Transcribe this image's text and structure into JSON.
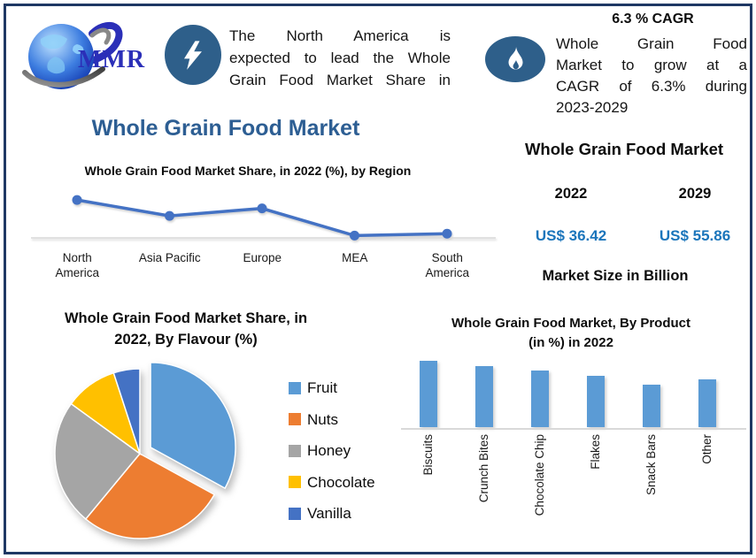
{
  "brand": {
    "name": "MMR",
    "logo_icon": "globe-icon"
  },
  "headline": {
    "icon": "lightning-icon",
    "lines": [
      "The North America is",
      "expected to lead the Whole",
      "Grain Food Market Share in"
    ]
  },
  "cagr": {
    "heading": "6.3 % CAGR",
    "icon": "flame-icon",
    "lines": [
      "Whole Grain Food",
      "Market to grow at a",
      "CAGR of 6.3% during",
      "2023-2029"
    ]
  },
  "main_title": "Whole Grain Food Market",
  "market_size": {
    "title": "Whole Grain Food Market",
    "columns": [
      {
        "year": "2022",
        "value": "US$ 36.42"
      },
      {
        "year": "2029",
        "value": "US$ 55.86"
      }
    ],
    "caption": "Market Size in Billion"
  },
  "colors": {
    "border_navy": "#1F3864",
    "icon_ellipse_blue": "#2E5F8A",
    "title_blue": "#2D5E93",
    "value_blue": "#1B75BB",
    "axis_gray": "#D9D9D9"
  },
  "chart_data": [
    {
      "id": "region_line",
      "type": "line",
      "title": "Whole Grain Food Market Share, in 2022 (%), by Region",
      "categories": [
        "North America",
        "Asia Pacific",
        "Europe",
        "MEA",
        "South America"
      ],
      "values": [
        40,
        23,
        31,
        2,
        4
      ],
      "line_color": "#4472C4",
      "ylim": [
        0,
        45
      ],
      "grid": false,
      "legend": "none",
      "axis_line": true
    },
    {
      "id": "flavour_pie",
      "type": "pie",
      "title": "Whole Grain Food Market Share, in 2022, By Flavour (%)",
      "title_lines": [
        "Whole Grain Food Market Share, in",
        "2022, By Flavour (%)"
      ],
      "labels": [
        "Fruit",
        "Nuts",
        "Honey",
        "Chocolate",
        "Vanilla"
      ],
      "values": [
        33,
        28,
        24,
        10,
        5
      ],
      "colors": [
        "#5B9BD5",
        "#ED7D31",
        "#A5A5A5",
        "#FFC000",
        "#4472C4"
      ],
      "exploded_slice": "Fruit",
      "legend_position": "right"
    },
    {
      "id": "product_bar",
      "type": "bar",
      "title": "Whole Grain Food Market, By Product (in %) in 2022",
      "title_lines": [
        "Whole Grain Food Market, By Product",
        "(in %) in 2022"
      ],
      "categories": [
        "Biscuits",
        "Crunch Bites",
        "Chocolate Chip",
        "Flakes",
        "Snack Bars",
        "Other"
      ],
      "values": [
        25,
        23,
        21.5,
        19.5,
        16,
        18
      ],
      "bar_color": "#5B9BD5",
      "ylim": [
        0,
        27
      ],
      "grid": false,
      "legend": "none"
    }
  ]
}
